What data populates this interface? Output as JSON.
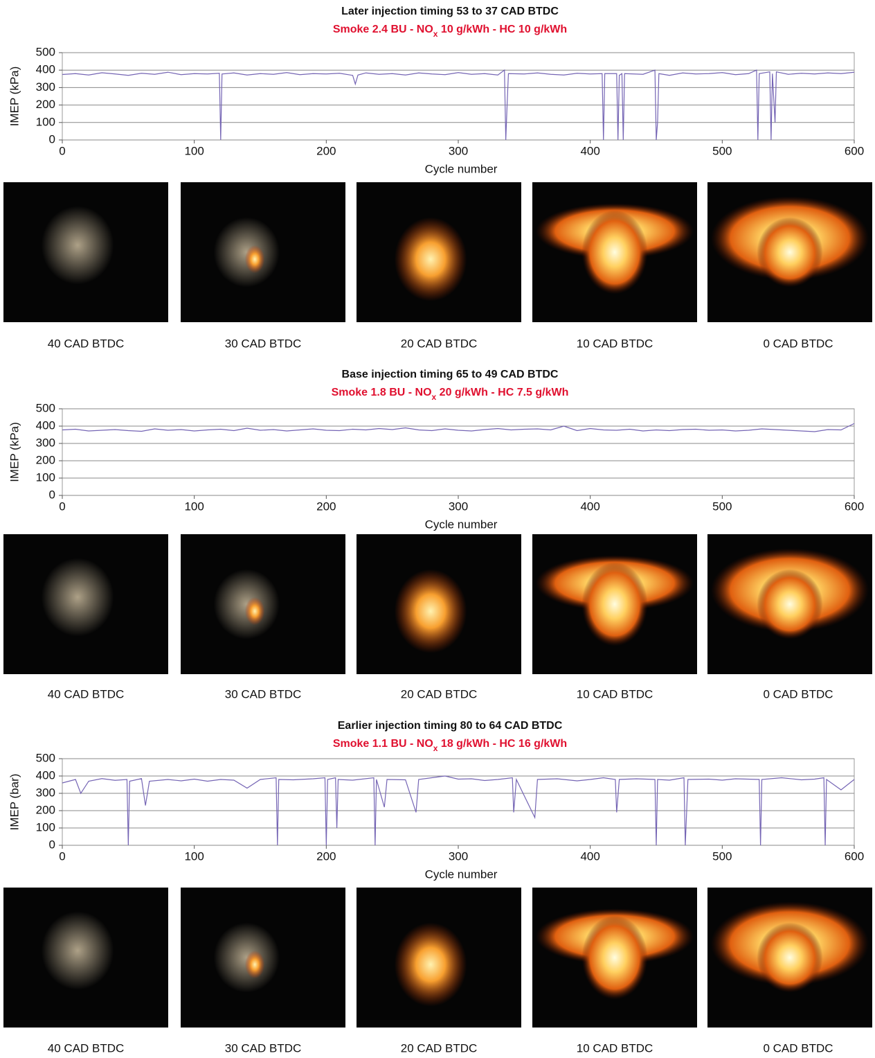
{
  "chart_data": [
    {
      "type": "line",
      "title": "Later injection timing 53 to 37 CAD BTDC",
      "subtitle": [
        "Smoke 2.4 BU - NO",
        "x",
        " 10 g/kWh - HC 10 g/kWh"
      ],
      "y_label": "IMEP (kPa)",
      "x_label": "Cycle number",
      "x": [
        0,
        10,
        20,
        30,
        40,
        50,
        60,
        70,
        80,
        90,
        100,
        110,
        119,
        120,
        121,
        130,
        140,
        150,
        160,
        170,
        180,
        190,
        200,
        210,
        220,
        222,
        224,
        230,
        240,
        250,
        260,
        270,
        280,
        290,
        300,
        310,
        320,
        330,
        335,
        336,
        337,
        338,
        350,
        360,
        370,
        380,
        390,
        400,
        409,
        410,
        411,
        420,
        421,
        422,
        424,
        425,
        426,
        440,
        449,
        450,
        451,
        452,
        460,
        470,
        480,
        490,
        500,
        510,
        520,
        526,
        527,
        528,
        536,
        537,
        538,
        540,
        541,
        550,
        560,
        570,
        580,
        590,
        600
      ],
      "series": [
        {
          "color": "#7464b4",
          "values": [
            375,
            380,
            372,
            385,
            378,
            370,
            382,
            376,
            388,
            374,
            380,
            378,
            382,
            0,
            378,
            384,
            372,
            380,
            376,
            386,
            374,
            380,
            378,
            382,
            370,
            320,
            372,
            384,
            376,
            380,
            372,
            384,
            378,
            374,
            386,
            376,
            380,
            372,
            400,
            0,
            200,
            380,
            378,
            384,
            376,
            372,
            382,
            378,
            380,
            0,
            380,
            380,
            0,
            370,
            380,
            0,
            380,
            376,
            400,
            0,
            100,
            380,
            370,
            384,
            378,
            380,
            386,
            374,
            380,
            400,
            0,
            380,
            390,
            0,
            380,
            100,
            390,
            376,
            382,
            378,
            384,
            380,
            388
          ]
        }
      ],
      "xlim": [
        0,
        600
      ],
      "xticks": [
        0,
        100,
        200,
        300,
        400,
        500,
        600
      ],
      "ylim": [
        0,
        500
      ],
      "yticks": [
        0,
        100,
        200,
        300,
        400,
        500
      ],
      "grid": true,
      "images": [
        "40 CAD BTDC",
        "30 CAD BTDC",
        "20 CAD BTDC",
        "10 CAD BTDC",
        "0 CAD BTDC"
      ]
    },
    {
      "type": "line",
      "title": "Base injection timing 65 to 49 CAD BTDC",
      "subtitle": [
        "Smoke 1.8 BU - NO",
        "x",
        " 20 g/kWh - HC 7.5 g/kWh"
      ],
      "y_label": "IMEP (kPa)",
      "x_label": "Cycle number",
      "x": [
        0,
        10,
        20,
        30,
        40,
        50,
        60,
        70,
        80,
        90,
        100,
        110,
        120,
        130,
        140,
        150,
        160,
        170,
        180,
        190,
        200,
        210,
        220,
        230,
        240,
        250,
        260,
        270,
        280,
        290,
        300,
        310,
        320,
        330,
        340,
        350,
        360,
        370,
        380,
        390,
        400,
        410,
        420,
        430,
        440,
        450,
        460,
        470,
        480,
        490,
        500,
        510,
        520,
        530,
        540,
        550,
        560,
        570,
        580,
        590,
        600
      ],
      "series": [
        {
          "color": "#7464b4",
          "values": [
            378,
            382,
            372,
            376,
            380,
            374,
            370,
            384,
            376,
            380,
            372,
            378,
            382,
            374,
            388,
            376,
            380,
            372,
            378,
            384,
            376,
            374,
            382,
            378,
            386,
            380,
            390,
            378,
            374,
            384,
            376,
            372,
            380,
            386,
            378,
            382,
            384,
            378,
            400,
            374,
            386,
            378,
            376,
            382,
            372,
            378,
            374,
            380,
            382,
            376,
            378,
            372,
            376,
            384,
            380,
            376,
            372,
            368,
            380,
            378,
            415
          ]
        }
      ],
      "xlim": [
        0,
        600
      ],
      "xticks": [
        0,
        100,
        200,
        300,
        400,
        500,
        600
      ],
      "ylim": [
        0,
        500
      ],
      "yticks": [
        0,
        100,
        200,
        300,
        400,
        500
      ],
      "grid": true,
      "images": [
        "40 CAD BTDC",
        "30 CAD BTDC",
        "20 CAD BTDC",
        "10 CAD BTDC",
        "0 CAD BTDC"
      ]
    },
    {
      "type": "line",
      "title": "Earlier injection timing 80 to 64 CAD BTDC",
      "subtitle": [
        "Smoke 1.1 BU - NO",
        "x",
        " 18 g/kWh - HC 16 g/kWh"
      ],
      "y_label": "IMEP (bar)",
      "x_label": "Cycle number",
      "x": [
        0,
        10,
        14,
        20,
        30,
        40,
        49,
        50,
        51,
        60,
        63,
        66,
        80,
        90,
        100,
        110,
        120,
        130,
        140,
        150,
        162,
        163,
        164,
        175,
        190,
        199,
        200,
        201,
        207,
        208,
        209,
        220,
        236,
        237,
        238,
        244,
        246,
        260,
        268,
        270,
        290,
        300,
        310,
        320,
        330,
        341,
        342,
        344,
        358,
        360,
        375,
        390,
        400,
        410,
        419,
        420,
        422,
        435,
        449,
        450,
        451,
        460,
        471,
        472,
        474,
        490,
        500,
        510,
        528,
        529,
        530,
        545,
        560,
        570,
        577,
        578,
        579,
        590,
        600
      ],
      "series": [
        {
          "color": "#7464b4",
          "values": [
            360,
            380,
            300,
            370,
            385,
            375,
            380,
            0,
            370,
            385,
            230,
            370,
            380,
            372,
            382,
            370,
            380,
            376,
            330,
            380,
            390,
            0,
            380,
            378,
            384,
            390,
            0,
            380,
            390,
            100,
            380,
            376,
            390,
            0,
            380,
            220,
            380,
            378,
            190,
            380,
            400,
            382,
            384,
            374,
            380,
            390,
            190,
            380,
            160,
            380,
            384,
            372,
            380,
            390,
            380,
            190,
            380,
            384,
            380,
            0,
            380,
            376,
            390,
            0,
            380,
            382,
            376,
            384,
            380,
            0,
            380,
            390,
            378,
            382,
            390,
            0,
            380,
            320,
            380
          ]
        }
      ],
      "xlim": [
        0,
        600
      ],
      "xticks": [
        0,
        100,
        200,
        300,
        400,
        500,
        600
      ],
      "ylim": [
        0,
        500
      ],
      "yticks": [
        0,
        100,
        200,
        300,
        400,
        500
      ],
      "grid": true,
      "images": [
        "40 CAD BTDC",
        "30 CAD BTDC",
        "20 CAD BTDC",
        "10 CAD BTDC",
        "0 CAD BTDC"
      ]
    }
  ]
}
